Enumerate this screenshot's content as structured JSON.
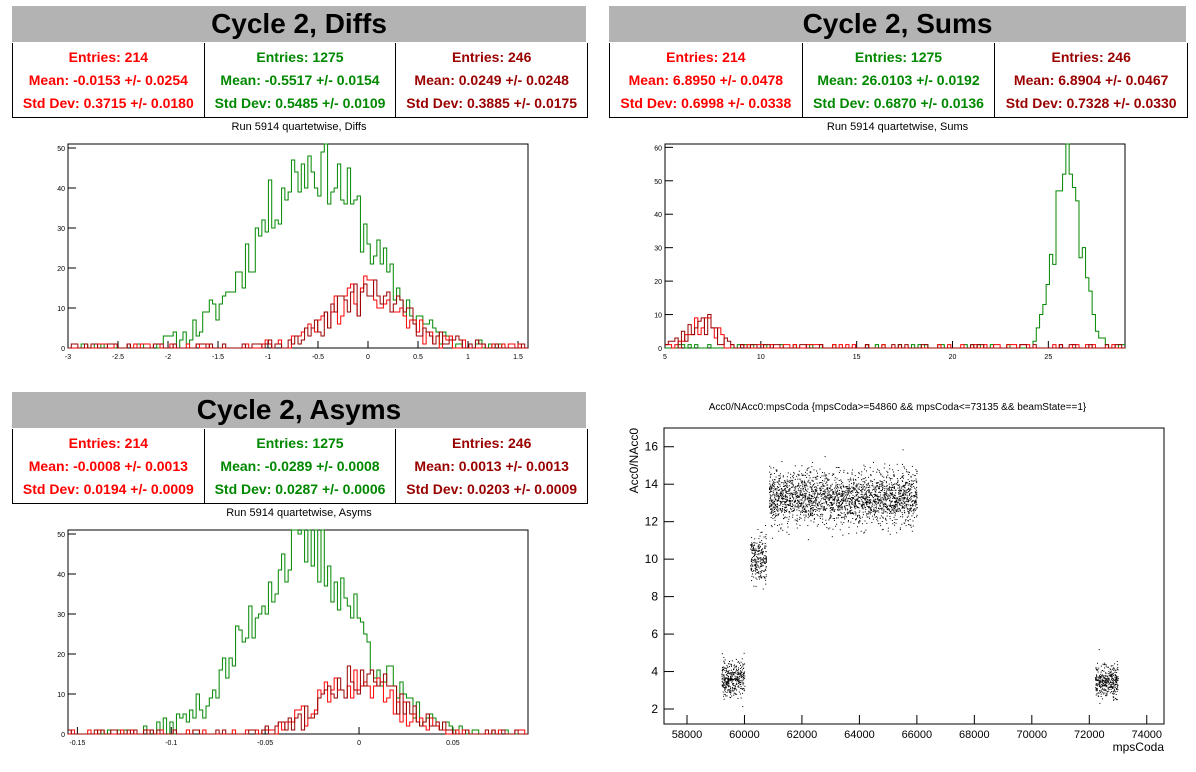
{
  "colors": {
    "red": "#ff0000",
    "green": "#008800",
    "darkred": "#990000"
  },
  "panels": [
    {
      "title": "Cycle 2, Diffs",
      "subtitle": "Run 5914 quartetwise, Diffs",
      "stats": [
        {
          "entries": "Entries: 214",
          "mean": "Mean: -0.0153 +/- 0.0254",
          "std": "Std Dev: 0.3715 +/- 0.0180"
        },
        {
          "entries": "Entries: 1275",
          "mean": "Mean: -0.5517 +/- 0.0154",
          "std": "Std Dev: 0.5485 +/- 0.0109"
        },
        {
          "entries": "Entries: 246",
          "mean": "Mean: 0.0249 +/- 0.0248",
          "std": "Std Dev: 0.3885 +/- 0.0175"
        }
      ]
    },
    {
      "title": "Cycle 2, Sums",
      "subtitle": "Run 5914 quartetwise, Sums",
      "stats": [
        {
          "entries": "Entries: 214",
          "mean": "Mean: 6.8950 +/- 0.0478",
          "std": "Std Dev: 0.6998 +/- 0.0338"
        },
        {
          "entries": "Entries: 1275",
          "mean": "Mean: 26.0103 +/- 0.0192",
          "std": "Std Dev: 0.6870 +/- 0.0136"
        },
        {
          "entries": "Entries: 246",
          "mean": "Mean: 6.8904 +/- 0.0467",
          "std": "Std Dev: 0.7328 +/- 0.0330"
        }
      ]
    },
    {
      "title": "Cycle 2, Asyms",
      "subtitle": "Run 5914 quartetwise, Asyms",
      "stats": [
        {
          "entries": "Entries: 214",
          "mean": "Mean: -0.0008 +/- 0.0013",
          "std": "Std Dev: 0.0194 +/- 0.0009"
        },
        {
          "entries": "Entries: 1275",
          "mean": "Mean: -0.0289 +/- 0.0008",
          "std": "Std Dev: 0.0287 +/- 0.0006"
        },
        {
          "entries": "Entries: 246",
          "mean": "Mean: 0.0013 +/- 0.0013",
          "std": "Std Dev: 0.0203 +/- 0.0009"
        }
      ]
    }
  ],
  "chart_data": [
    {
      "type": "histogram",
      "title": "Run 5914 quartetwise, Diffs",
      "xlim": [
        -3,
        1.6
      ],
      "ylim": [
        0,
        51
      ],
      "xticks": [
        -3,
        -2.5,
        -2,
        -1.5,
        -1,
        -0.5,
        0,
        0.5,
        1,
        1.5
      ],
      "xtick_labels": [
        "-3",
        "-2.5",
        "-2",
        "-1.5",
        "-1",
        "-0.5",
        "0",
        "0.5",
        "1",
        "1.5"
      ],
      "yticks": [
        0,
        10,
        20,
        30,
        40,
        50
      ],
      "series": [
        {
          "color": "#008800",
          "gaussian": {
            "mean": -0.5517,
            "sigma": 0.5485,
            "peak": 46
          }
        },
        {
          "color": "#ff0000",
          "gaussian": {
            "mean": -0.0153,
            "sigma": 0.3715,
            "peak": 13
          }
        },
        {
          "color": "#990000",
          "gaussian": {
            "mean": 0.0249,
            "sigma": 0.3885,
            "peak": 13
          }
        }
      ]
    },
    {
      "type": "histogram",
      "title": "Run 5914 quartetwise, Sums",
      "xlim": [
        5,
        29
      ],
      "ylim": [
        0,
        61
      ],
      "xticks": [
        5,
        10,
        15,
        20,
        25
      ],
      "xtick_labels": [
        "5",
        "10",
        "15",
        "20",
        "25"
      ],
      "yticks": [
        0,
        10,
        20,
        30,
        40,
        50,
        60
      ],
      "series": [
        {
          "color": "#008800",
          "gaussian": {
            "mean": 26.0103,
            "sigma": 0.687,
            "peak": 55
          }
        },
        {
          "color": "#ff0000",
          "gaussian": {
            "mean": 6.895,
            "sigma": 0.6998,
            "peak": 8
          }
        },
        {
          "color": "#990000",
          "gaussian": {
            "mean": 6.8904,
            "sigma": 0.7328,
            "peak": 8
          }
        }
      ]
    },
    {
      "type": "histogram",
      "title": "Run 5914 quartetwise, Asyms",
      "xlim": [
        -0.155,
        0.09
      ],
      "ylim": [
        0,
        51
      ],
      "xticks": [
        -0.15,
        -0.1,
        -0.05,
        0,
        0.05
      ],
      "xtick_labels": [
        "-0.15",
        "-0.1",
        "-0.05",
        "0",
        "0.05"
      ],
      "yticks": [
        0,
        10,
        20,
        30,
        40,
        50
      ],
      "series": [
        {
          "color": "#008800",
          "gaussian": {
            "mean": -0.0289,
            "sigma": 0.0287,
            "peak": 46
          }
        },
        {
          "color": "#ff0000",
          "gaussian": {
            "mean": -0.0008,
            "sigma": 0.0194,
            "peak": 13
          }
        },
        {
          "color": "#990000",
          "gaussian": {
            "mean": 0.0013,
            "sigma": 0.0203,
            "peak": 13
          }
        }
      ]
    },
    {
      "type": "scatter",
      "title": "Acc0/NAcc0:mpsCoda {mpsCoda>=54860 && mpsCoda<=73135 && beamState==1}",
      "xlabel": "mpsCoda",
      "ylabel": "Acc0/NAcc0",
      "xlim": [
        57200,
        74600
      ],
      "ylim": [
        1.2,
        17
      ],
      "xticks": [
        58000,
        60000,
        62000,
        64000,
        66000,
        68000,
        70000,
        72000,
        74000
      ],
      "xtick_labels": [
        "58000",
        "60000",
        "62000",
        "64000",
        "66000",
        "68000",
        "70000",
        "72000",
        "74000"
      ],
      "yticks": [
        2,
        4,
        6,
        8,
        10,
        12,
        14,
        16
      ],
      "ytick_labels": [
        "2",
        "4",
        "6",
        "8",
        "10",
        "12",
        "14",
        "16"
      ],
      "clusters": [
        {
          "x": [
            59200,
            60000
          ],
          "y": [
            2.5,
            4.8
          ]
        },
        {
          "x": [
            60200,
            60750
          ],
          "y": [
            8.5,
            11.5
          ]
        },
        {
          "x": [
            60850,
            66000
          ],
          "y": [
            11.6,
            15.0
          ]
        },
        {
          "x": [
            72200,
            73000
          ],
          "y": [
            2.5,
            4.6
          ]
        }
      ]
    }
  ]
}
